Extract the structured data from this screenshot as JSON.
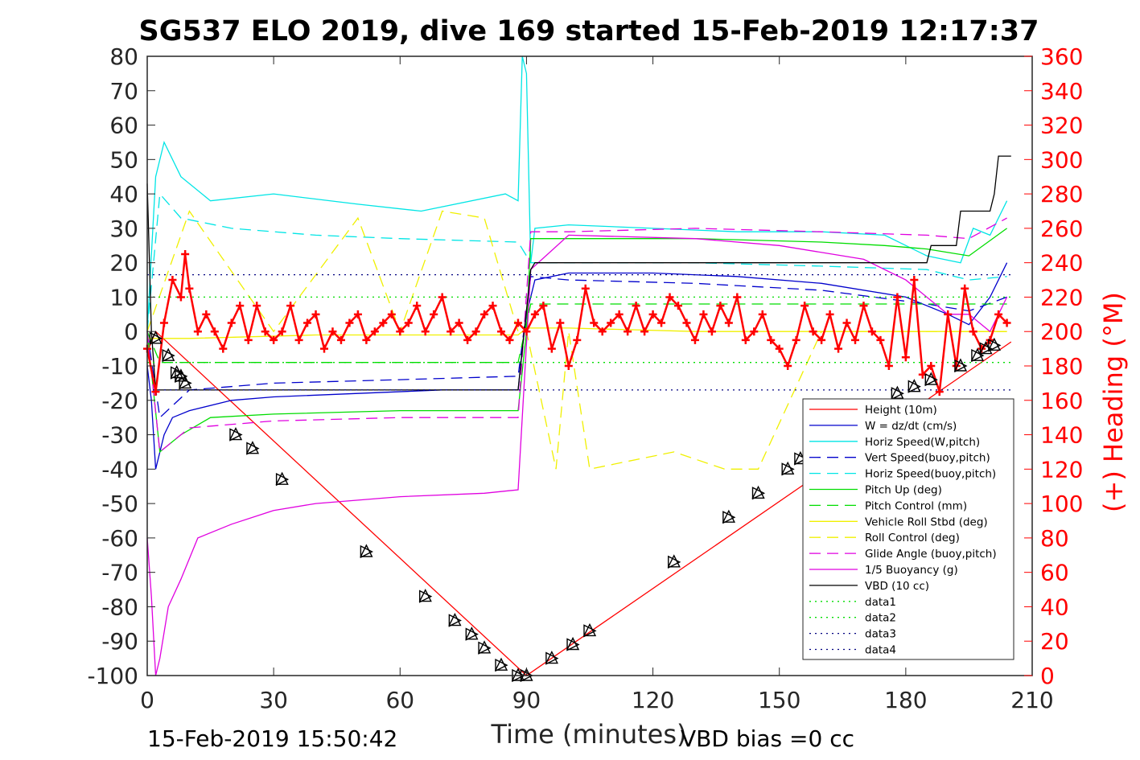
{
  "chart_data": {
    "type": "line",
    "title": "SG537 ELO 2019, dive 169 started 15-Feb-2019 12:17:37",
    "xlabel": "Time (minutes)",
    "ylabel": "",
    "y2label": "(+) Heading (°M)",
    "xlim": [
      0,
      210
    ],
    "ylim": [
      -100,
      80
    ],
    "y2lim": [
      0,
      360
    ],
    "xticks": [
      0,
      30,
      60,
      90,
      120,
      150,
      180,
      210
    ],
    "yticks": [
      80,
      70,
      60,
      50,
      40,
      30,
      20,
      10,
      0,
      -10,
      -20,
      -30,
      -40,
      -50,
      -60,
      -70,
      -80,
      -90,
      -100
    ],
    "y2ticks": [
      360,
      340,
      320,
      300,
      280,
      260,
      240,
      220,
      200,
      180,
      160,
      140,
      120,
      100,
      80,
      60,
      40,
      20,
      0
    ],
    "footer_left": "15-Feb-2019 15:50:42",
    "footer_right": "VBD bias =0 cc",
    "legend_position": "lower-right",
    "series": [
      {
        "name": "Height (10m)",
        "color": "#ff0000",
        "style": "solid",
        "x": [
          0,
          2,
          90,
          205
        ],
        "y": [
          -6,
          0,
          -100,
          -3
        ]
      },
      {
        "name": "W = dz/dt (cm/s)",
        "color": "#0000cc",
        "style": "solid",
        "x": [
          0,
          1,
          2,
          4,
          6,
          10,
          20,
          30,
          50,
          70,
          88,
          89,
          90,
          92,
          100,
          120,
          140,
          160,
          180,
          190,
          195,
          200,
          204
        ],
        "y": [
          -10,
          -20,
          -40,
          -30,
          -25,
          -23,
          -20,
          -19,
          -18,
          -17,
          -17,
          -5,
          5,
          15,
          17,
          17,
          16,
          14,
          10,
          5,
          2,
          10,
          20
        ]
      },
      {
        "name": "Horiz Speed(W,pitch)",
        "color": "#00e5e5",
        "style": "solid",
        "x": [
          0,
          2,
          4,
          8,
          15,
          30,
          50,
          65,
          85,
          88,
          89,
          90,
          91,
          92,
          100,
          120,
          140,
          160,
          175,
          185,
          193,
          196,
          200,
          204
        ],
        "y": [
          0,
          45,
          55,
          45,
          38,
          40,
          37,
          35,
          40,
          38,
          80,
          75,
          20,
          30,
          31,
          30,
          29,
          29,
          28,
          22,
          20,
          30,
          28,
          38
        ]
      },
      {
        "name": "Vert Speed(buoy,pitch)",
        "color": "#0000cc",
        "style": "dashed",
        "x": [
          0,
          3,
          10,
          30,
          60,
          88,
          91,
          100,
          130,
          160,
          185,
          195,
          204
        ],
        "y": [
          0,
          -25,
          -17,
          -15,
          -14,
          -13,
          16,
          15,
          14,
          12,
          8,
          6,
          10
        ]
      },
      {
        "name": "Horiz Speed(buoy,pitch)",
        "color": "#00e5e5",
        "style": "dashed",
        "x": [
          0,
          3,
          8,
          20,
          40,
          60,
          88,
          91,
          100,
          130,
          160,
          185,
          195,
          204
        ],
        "y": [
          0,
          40,
          33,
          30,
          28,
          27,
          26,
          20,
          20,
          20,
          19,
          18,
          15,
          16
        ]
      },
      {
        "name": "Pitch Up (deg)",
        "color": "#00dd00",
        "style": "solid",
        "x": [
          0,
          3,
          8,
          15,
          30,
          60,
          88,
          90,
          91,
          100,
          130,
          160,
          175,
          185,
          195,
          204
        ],
        "y": [
          0,
          -35,
          -30,
          -25,
          -24,
          -23,
          -23,
          0,
          27,
          27,
          27,
          26,
          25,
          24,
          22,
          30
        ]
      },
      {
        "name": "Pitch Control (mm)",
        "color": "#00dd00",
        "style": "dashed",
        "x": [
          0,
          3,
          88,
          91,
          204
        ],
        "y": [
          0,
          -9,
          -9,
          8,
          8
        ]
      },
      {
        "name": "Vehicle Roll Stbd (deg)",
        "color": "#f0f000",
        "style": "solid",
        "x": [
          0,
          10,
          40,
          88,
          90,
          100,
          130,
          160,
          190,
          204
        ],
        "y": [
          -2,
          -2,
          -1,
          -1,
          1,
          1,
          0,
          0,
          0,
          0
        ]
      },
      {
        "name": "Roll Control (deg)",
        "color": "#f0f000",
        "style": "dashed",
        "x": [
          0,
          10,
          30,
          50,
          60,
          70,
          80,
          88,
          90,
          97,
          100,
          105,
          125,
          137,
          145,
          160,
          180,
          204
        ],
        "y": [
          0,
          35,
          0,
          33,
          0,
          35,
          33,
          0,
          0,
          -40,
          0,
          -40,
          -35,
          -40,
          -40,
          0,
          0,
          0
        ]
      },
      {
        "name": "Glide Angle (buoy,pitch)",
        "color": "#e000e0",
        "style": "dashed",
        "x": [
          0,
          3,
          10,
          30,
          60,
          88,
          91,
          100,
          130,
          160,
          185,
          195,
          204
        ],
        "y": [
          0,
          -35,
          -28,
          -26,
          -25,
          -25,
          29,
          29,
          30,
          29,
          28,
          27,
          33
        ]
      },
      {
        "name": "1/5 Buoyancy (g)",
        "color": "#e000e0",
        "style": "solid",
        "x": [
          0,
          1,
          2,
          3,
          5,
          8,
          12,
          20,
          30,
          40,
          60,
          80,
          88,
          91,
          100,
          130,
          150,
          170,
          180,
          190,
          195,
          200,
          204
        ],
        "y": [
          -60,
          -77,
          -100,
          -95,
          -80,
          -72,
          -60,
          -56,
          -52,
          -50,
          -48,
          -47,
          -46,
          18,
          28,
          27,
          25,
          21,
          15,
          5,
          5,
          0,
          10
        ]
      },
      {
        "name": "VBD (10 cc)",
        "color": "#000000",
        "style": "solid",
        "x": [
          0,
          1,
          2,
          88,
          91,
          92,
          185,
          186,
          192,
          193,
          200,
          201,
          202,
          205
        ],
        "y": [
          43,
          0,
          -17,
          -17,
          18,
          20,
          20,
          25,
          25,
          35,
          35,
          40,
          51,
          51
        ]
      },
      {
        "name": "data1",
        "color": "#00dd00",
        "style": "dotted",
        "x": [
          0,
          205
        ],
        "y": [
          10,
          10
        ]
      },
      {
        "name": "data2",
        "color": "#00dd00",
        "style": "dotted",
        "x": [
          0,
          205
        ],
        "y": [
          -9,
          -9
        ]
      },
      {
        "name": "data3",
        "color": "#000080",
        "style": "dotted",
        "x": [
          0,
          205
        ],
        "y": [
          16.5,
          16.5
        ]
      },
      {
        "name": "data4",
        "color": "#000080",
        "style": "dotted",
        "x": [
          0,
          205
        ],
        "y": [
          -17,
          -17
        ]
      }
    ],
    "heading": {
      "color": "#ff0000",
      "marker": "+",
      "axis": "right",
      "x": [
        0,
        2,
        4,
        6,
        8,
        9,
        10,
        12,
        14,
        16,
        18,
        20,
        22,
        24,
        26,
        28,
        30,
        32,
        34,
        36,
        38,
        40,
        42,
        44,
        46,
        48,
        50,
        52,
        54,
        56,
        58,
        60,
        62,
        64,
        66,
        68,
        70,
        72,
        74,
        76,
        78,
        80,
        82,
        84,
        86,
        88,
        90,
        92,
        94,
        96,
        98,
        100,
        102,
        104,
        106,
        108,
        110,
        112,
        114,
        116,
        118,
        120,
        122,
        124,
        126,
        128,
        130,
        132,
        134,
        136,
        138,
        140,
        142,
        144,
        146,
        148,
        150,
        152,
        154,
        156,
        158,
        160,
        162,
        164,
        166,
        168,
        170,
        172,
        174,
        176,
        178,
        180,
        182,
        184,
        186,
        188,
        190,
        192,
        194,
        196,
        198,
        200,
        202,
        204
      ],
      "y": [
        190,
        165,
        205,
        230,
        220,
        245,
        225,
        200,
        210,
        200,
        190,
        205,
        215,
        195,
        215,
        200,
        195,
        200,
        215,
        195,
        205,
        210,
        190,
        200,
        195,
        205,
        210,
        195,
        200,
        205,
        210,
        200,
        205,
        215,
        200,
        210,
        220,
        200,
        205,
        195,
        200,
        210,
        215,
        200,
        195,
        205,
        200,
        210,
        215,
        190,
        205,
        180,
        195,
        225,
        205,
        200,
        205,
        210,
        200,
        215,
        200,
        210,
        205,
        220,
        215,
        205,
        195,
        210,
        200,
        215,
        205,
        220,
        195,
        200,
        210,
        195,
        190,
        180,
        195,
        215,
        200,
        195,
        210,
        190,
        205,
        195,
        215,
        200,
        195,
        180,
        220,
        185,
        230,
        175,
        180,
        165,
        210,
        180,
        225,
        200,
        190,
        195,
        210,
        205
      ]
    },
    "markers": {
      "color": "#000000",
      "shape": "triangle",
      "x": [
        2,
        5,
        7,
        8,
        9,
        21,
        25,
        32,
        52,
        66,
        73,
        77,
        80,
        84,
        88,
        90,
        96,
        101,
        105,
        125,
        138,
        145,
        152,
        155,
        157,
        178,
        182,
        186,
        193,
        197,
        199,
        201
      ],
      "y": [
        -2,
        -7,
        -12,
        -13,
        -15,
        -30,
        -34,
        -43,
        -64,
        -77,
        -84,
        -88,
        -92,
        -97,
        -100,
        -100,
        -95,
        -91,
        -87,
        -67,
        -54,
        -47,
        -40,
        -37,
        -35,
        -18,
        -16,
        -14,
        -10,
        -7,
        -5,
        -4
      ]
    }
  }
}
